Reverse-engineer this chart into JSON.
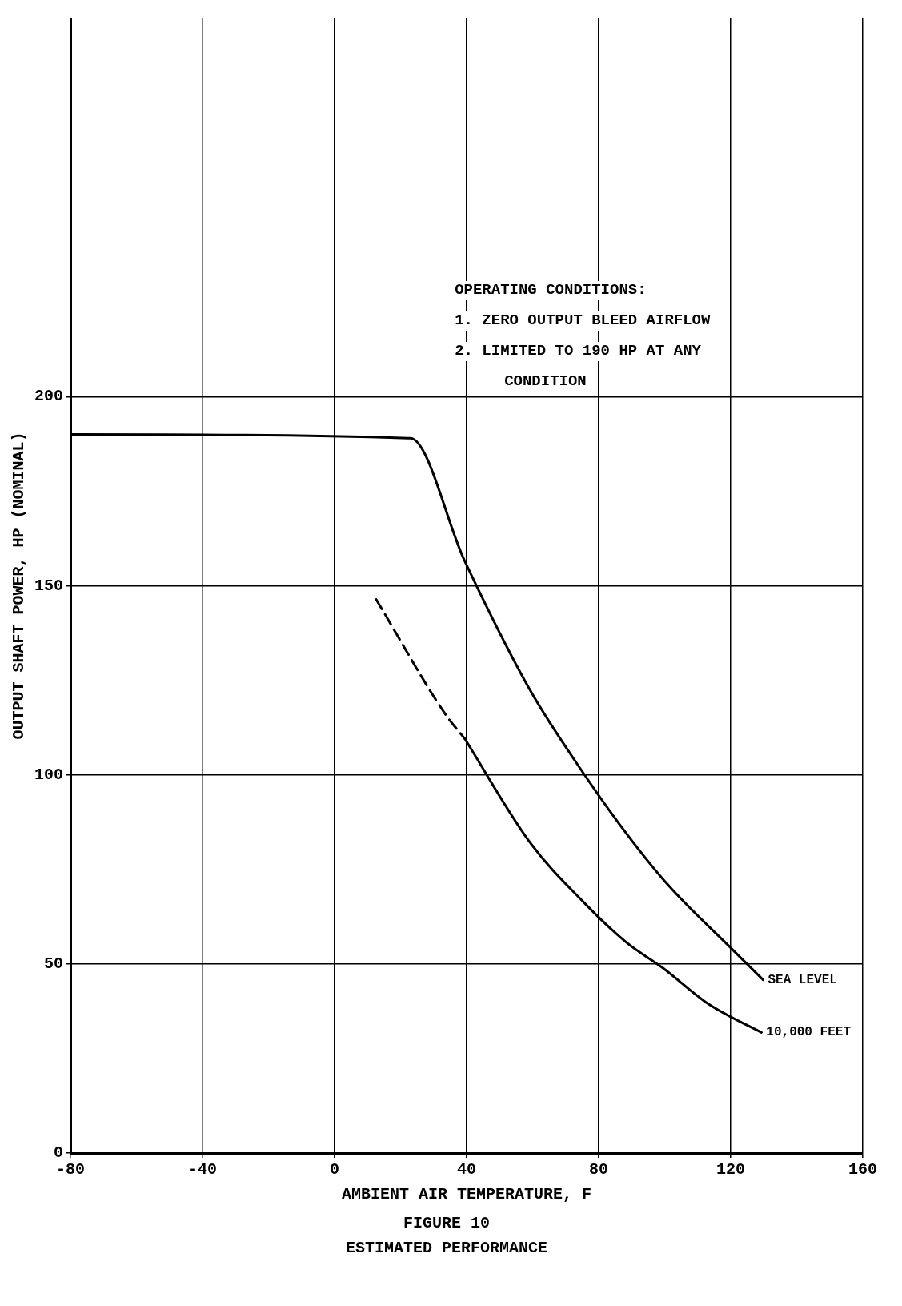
{
  "chart_data": {
    "type": "line",
    "title": "FIGURE 10",
    "subtitle": "ESTIMATED PERFORMANCE",
    "xlabel": "AMBIENT AIR TEMPERATURE, F",
    "ylabel": "OUTPUT SHAFT POWER, HP (NOMINAL)",
    "xlim": [
      -80,
      160
    ],
    "xticks": [
      -80,
      -40,
      0,
      40,
      80,
      120,
      160
    ],
    "ylim": [
      0,
      300
    ],
    "yticks": [
      0,
      50,
      100,
      150,
      200
    ],
    "grid": true,
    "legend": false,
    "marker": "none",
    "annotations": [
      "OPERATING CONDITIONS:",
      "1. ZERO OUTPUT BLEED AIRFLOW",
      "2. LIMITED TO 190 HP AT ANY",
      "CONDITION"
    ],
    "series": [
      {
        "name": "SEA LEVEL",
        "color": "#000000",
        "line_style": "solid",
        "x": [
          -80,
          23,
          39.4,
          59.3,
          75.5,
          88.4,
          101,
          120.4,
          129.8
        ],
        "values": [
          190,
          189,
          156.6,
          122.3,
          100.3,
          84.5,
          70.9,
          53.9,
          45.8
        ]
      },
      {
        "color": "#000000",
        "line_style": "dashed",
        "x": [
          12.6,
          33.6,
          39.4
        ],
        "values": [
          146.4,
          116,
          109.6
        ]
      },
      {
        "name": "10,000 FEET",
        "color": "#000000",
        "line_style": "solid",
        "x": [
          39.4,
          59.3,
          75.5,
          88.4,
          99.5,
          113.4,
          129.3
        ],
        "values": [
          109.6,
          82,
          66.3,
          55.7,
          48.9,
          39.3,
          31.9
        ]
      }
    ]
  }
}
